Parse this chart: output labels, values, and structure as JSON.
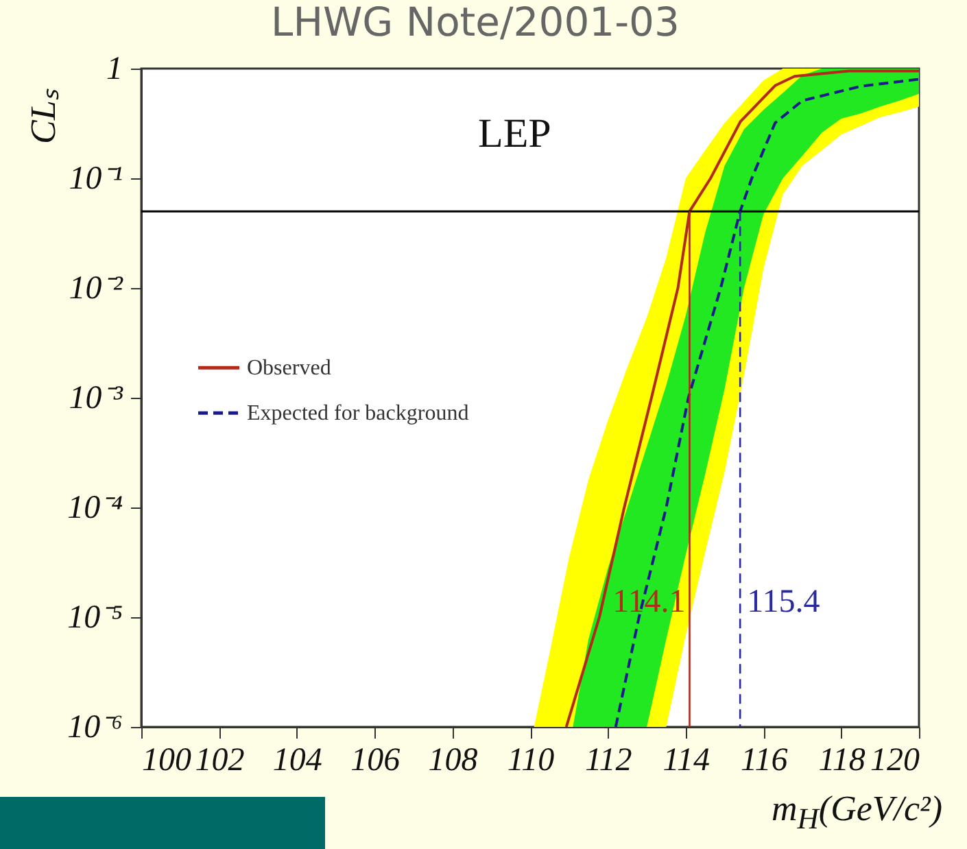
{
  "chart_data": {
    "type": "line",
    "title": "LHWG Note/2001-03",
    "xlabel": "m$_{H}$(GeV/c²)",
    "ylabel": "CLₛ",
    "log": "y",
    "xlim": [
      100,
      120
    ],
    "xticks": [
      100,
      102,
      104,
      106,
      108,
      110,
      112,
      114,
      116,
      118,
      120
    ],
    "ylim": [
      1e-06,
      1
    ],
    "yticks": [
      1,
      {
        "value": 0.1,
        "label": "10⁻¹"
      },
      {
        "value": 0.01,
        "label": "10⁻²"
      },
      {
        "value": 0.001,
        "label": "10⁻³"
      },
      {
        "value": 0.0001,
        "label": "10⁻⁴"
      },
      {
        "value": 1e-05,
        "label": "10⁻⁵"
      },
      {
        "value": 1e-06,
        "label": "10⁻⁶"
      }
    ],
    "grid": false,
    "legend": "left",
    "annotations": [
      "LEP"
    ],
    "series": [
      {
        "type": "area",
        "color": "#ffff00",
        "x": [
          110.1,
          110.5,
          111,
          111.5,
          112,
          112.5,
          113,
          113.5,
          114,
          114.5,
          115,
          115.5,
          116,
          116.5,
          117,
          117.5,
          118,
          118.5,
          119,
          119.5,
          120
        ],
        "values": [
          null,
          null,
          null,
          null,
          null,
          null,
          null,
          null,
          null,
          null,
          null,
          null,
          null,
          null,
          null,
          null,
          null,
          null,
          null,
          null,
          null
        ],
        "upper": [
          1e-06,
          4.7e-06,
          3.5e-05,
          0.00018,
          0.00062,
          0.0019,
          0.0054,
          0.019,
          0.1,
          0.18,
          0.32,
          0.5,
          0.78,
          1,
          1,
          1,
          1,
          1,
          1,
          1,
          1
        ],
        "lower": [
          1e-06,
          1e-06,
          1e-06,
          1e-06,
          1e-06,
          1e-06,
          1e-06,
          1e-06,
          6.8e-06,
          3.9e-05,
          0.00021,
          0.0016,
          0.015,
          0.071,
          0.13,
          0.18,
          0.25,
          0.3,
          0.36,
          0.4,
          0.45
        ]
      },
      {
        "type": "area",
        "color": "#22e822",
        "x": [
          111.1,
          111.5,
          112,
          112.5,
          113,
          113.5,
          114,
          114.5,
          115,
          115.5,
          116,
          116.5,
          117,
          117.5,
          118,
          118.5,
          119,
          119.5,
          120
        ],
        "values": [
          null,
          null,
          null,
          null,
          null,
          null,
          null,
          null,
          null,
          null,
          null,
          null,
          null,
          null,
          null,
          null,
          null,
          null,
          null
        ],
        "upper": [
          1e-06,
          6.3e-06,
          2.8e-05,
          0.0001,
          0.00036,
          0.0013,
          0.0056,
          0.032,
          0.13,
          0.28,
          0.42,
          0.6,
          0.87,
          1,
          1,
          1,
          1,
          1,
          1
        ],
        "lower": [
          1e-06,
          1e-06,
          1e-06,
          1e-06,
          1e-06,
          6.3e-06,
          3.7e-05,
          0.0002,
          0.0012,
          0.01,
          0.047,
          0.1,
          0.16,
          0.26,
          0.35,
          0.39,
          0.45,
          0.51,
          0.59
        ]
      },
      {
        "name": "Observed",
        "color": "#b22a1a",
        "line_style": "solid",
        "x": [
          110.93,
          111.78,
          112.42,
          113.12,
          113.8,
          114.1,
          114.64,
          115.41,
          116.3,
          116.8,
          118.2,
          120
        ],
        "values": [
          1e-06,
          1e-05,
          0.0001,
          0.001,
          0.01,
          0.05,
          0.1,
          0.33,
          0.7,
          0.85,
          0.95,
          0.95
        ]
      },
      {
        "name": "Expected for background",
        "color": "#1a1a8c",
        "line_style": "dashed",
        "x": [
          112.2,
          112.8,
          113.5,
          114.07,
          114.9,
          115.4,
          115.7,
          116.3,
          117,
          118.5,
          120
        ],
        "values": [
          1e-06,
          1e-05,
          0.0001,
          0.001,
          0.01,
          0.05,
          0.1,
          0.32,
          0.51,
          0.69,
          0.8
        ]
      }
    ],
    "ref_lines": [
      {
        "axis": "y",
        "value": 0.05,
        "color": "#000000"
      },
      {
        "axis": "x",
        "value": 114.1,
        "label": "114.1",
        "color": "#b22a1a"
      },
      {
        "axis": "x",
        "value": 115.4,
        "label": "115.4",
        "color": "#2a2aa0",
        "line_style": "dashed"
      }
    ]
  }
}
